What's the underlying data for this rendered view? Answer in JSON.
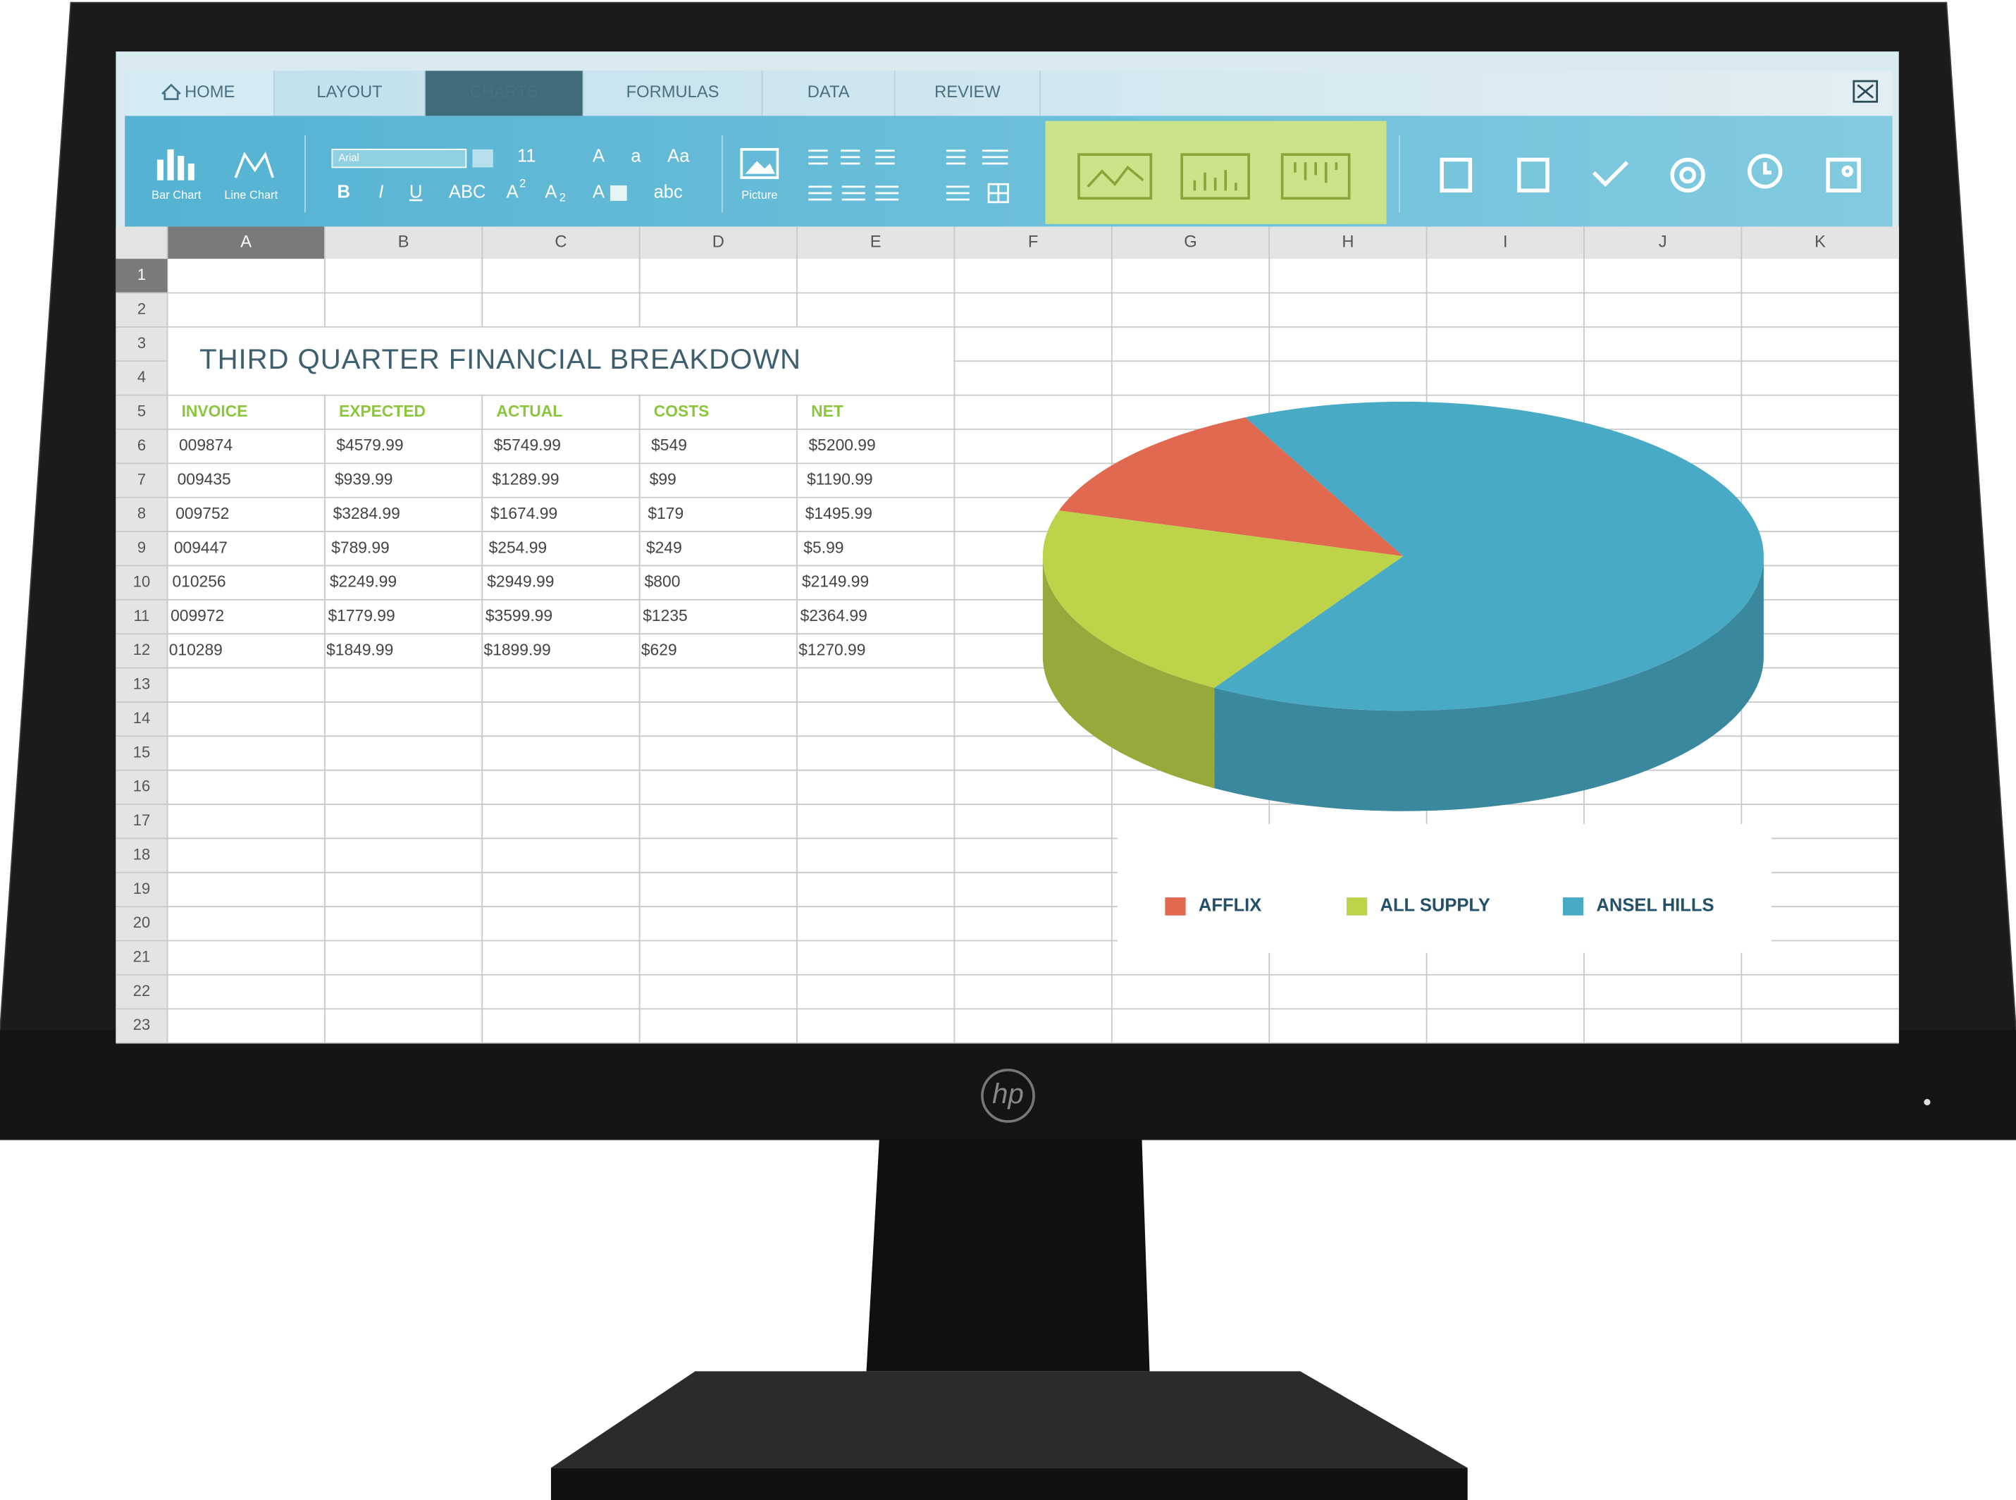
{
  "brand": "hp",
  "tabs": [
    "HOME",
    "LAYOUT",
    "CHARTS",
    "FORMULAS",
    "DATA",
    "REVIEW"
  ],
  "ribbon": {
    "bar_chart": "Bar Chart",
    "line_chart": "Line Chart",
    "font": "Arial",
    "font_size": "11",
    "font_grow": "A",
    "font_shrink": "a",
    "change_case": "Aa",
    "bold": "B",
    "italic": "I",
    "underline": "U",
    "caps": "ABC",
    "superscript": [
      "A",
      "2"
    ],
    "subscript": [
      "A",
      "2"
    ],
    "font_color": "A",
    "lower": "abc",
    "picture": "Picture"
  },
  "columns": [
    "A",
    "B",
    "C",
    "D",
    "E",
    "F",
    "G",
    "H",
    "I",
    "J",
    "K"
  ],
  "rows": [
    1,
    2,
    3,
    4,
    5,
    6,
    7,
    8,
    9,
    10,
    11,
    12,
    13,
    14,
    15,
    16,
    17,
    18,
    19,
    20,
    21,
    22,
    23
  ],
  "sheet": {
    "title": "THIRD QUARTER FINANCIAL BREAKDOWN",
    "header": [
      "INVOICE",
      "EXPECTED",
      "ACTUAL",
      "COSTS",
      "NET"
    ],
    "rows": [
      [
        "009874",
        "$4579.99",
        "$5749.99",
        "$549",
        "$5200.99"
      ],
      [
        "009435",
        "$939.99",
        "$1289.99",
        "$99",
        "$1190.99"
      ],
      [
        "009752",
        "$3284.99",
        "$1674.99",
        "$179",
        "$1495.99"
      ],
      [
        "009447",
        "$789.99",
        "$254.99",
        "$249",
        "$5.99"
      ],
      [
        "010256",
        "$2249.99",
        "$2949.99",
        "$800",
        "$2149.99"
      ],
      [
        "009972",
        "$1779.99",
        "$3599.99",
        "$1235",
        "$2364.99"
      ],
      [
        "010289",
        "$1849.99",
        "$1899.99",
        "$629",
        "$1270.99"
      ]
    ]
  },
  "chart_data": {
    "type": "pie",
    "categories": [
      "AFFLIX",
      "ALL SUPPLY",
      "ANSEL HILLS"
    ],
    "values": [
      13,
      21,
      66
    ],
    "colors": [
      "#e0694f",
      "#bcd34a",
      "#49aac6"
    ]
  }
}
